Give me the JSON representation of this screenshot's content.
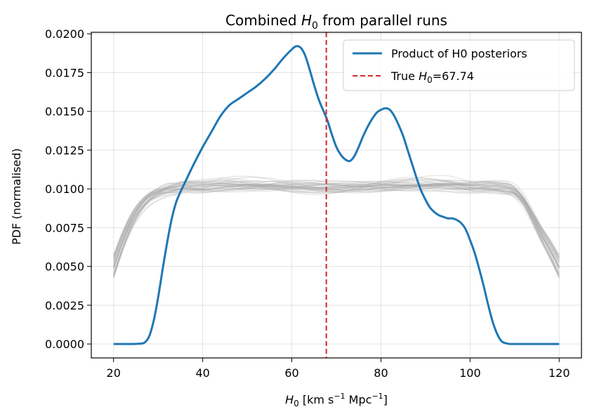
{
  "chart_data": {
    "type": "line",
    "title": "Combined H0 from parallel runs",
    "title_parts": {
      "pre": "Combined ",
      "sym": "H",
      "sub": "0",
      "post": " from parallel runs"
    },
    "xlabel": "H0 [km s^-1 Mpc^-1]",
    "xlabel_parts": {
      "sym": "H",
      "sub": "0",
      "a": " [km s",
      "sup1": "−1",
      "b": " Mpc",
      "sup2": "−1",
      "c": "]"
    },
    "ylabel": "PDF (normalised)",
    "xlim": [
      15,
      125
    ],
    "ylim": [
      -0.0009,
      0.0201
    ],
    "xticks": [
      20,
      40,
      60,
      80,
      100,
      120
    ],
    "xtick_labels": [
      "20",
      "40",
      "60",
      "80",
      "100",
      "120"
    ],
    "yticks": [
      0.0,
      0.0025,
      0.005,
      0.0075,
      0.01,
      0.0125,
      0.015,
      0.0175,
      0.02
    ],
    "ytick_labels": [
      "0.0000",
      "0.0025",
      "0.0050",
      "0.0075",
      "0.0100",
      "0.0125",
      "0.0150",
      "0.0175",
      "0.0200"
    ],
    "grid": true,
    "legend_location": "top-right",
    "series": [
      {
        "name": "Product of H0 posteriors",
        "color": "#1f77b4",
        "style": "solid",
        "x": [
          20,
          22,
          24,
          26,
          27,
          28,
          29,
          30,
          31,
          32,
          33,
          34,
          35,
          36,
          38,
          40,
          42,
          44,
          46,
          48,
          50,
          52,
          54,
          56,
          58,
          60,
          61,
          62,
          63,
          64,
          65,
          66,
          67,
          68,
          69,
          70,
          71,
          72,
          73,
          74,
          75,
          76,
          77,
          78,
          79,
          80,
          81,
          82,
          83,
          84,
          85,
          86,
          87,
          88,
          89,
          90,
          91,
          92,
          93,
          94,
          95,
          96,
          97,
          98,
          99,
          100,
          101,
          102,
          103,
          104,
          105,
          106,
          107,
          108,
          109,
          110,
          111,
          112,
          113,
          114,
          115,
          116,
          118,
          120
        ],
        "y": [
          0.0,
          0.0,
          0.0,
          2e-05,
          0.0001,
          0.0005,
          0.0015,
          0.003,
          0.0048,
          0.0065,
          0.008,
          0.0091,
          0.0098,
          0.0104,
          0.0116,
          0.0127,
          0.0137,
          0.0147,
          0.0154,
          0.0158,
          0.0162,
          0.0166,
          0.0171,
          0.0177,
          0.0184,
          0.019,
          0.0192,
          0.0191,
          0.0186,
          0.0177,
          0.0167,
          0.0158,
          0.0151,
          0.0144,
          0.0135,
          0.0127,
          0.0122,
          0.0119,
          0.0118,
          0.0121,
          0.0127,
          0.0134,
          0.014,
          0.0145,
          0.0149,
          0.0151,
          0.0152,
          0.0151,
          0.0147,
          0.0141,
          0.0134,
          0.0125,
          0.0116,
          0.0107,
          0.0099,
          0.0093,
          0.0088,
          0.0085,
          0.0083,
          0.0082,
          0.0081,
          0.0081,
          0.008,
          0.0078,
          0.0074,
          0.0067,
          0.0059,
          0.0049,
          0.0038,
          0.0026,
          0.0015,
          0.0007,
          0.0002,
          5e-05,
          0.0,
          0.0,
          0.0,
          0.0,
          0.0,
          0.0,
          0.0,
          0.0,
          0.0,
          0.0
        ]
      },
      {
        "name": "True H0=67.74",
        "legend_parts": {
          "pre": "True ",
          "sym": "H",
          "sub": "0",
          "post": "=67.74"
        },
        "color": "#d62728",
        "style": "dashed",
        "type": "vline",
        "x": 67.74
      }
    ],
    "background_runs": {
      "color": "#aaaaaa",
      "count": 36,
      "x": [
        20,
        22,
        24,
        26,
        28,
        30,
        32,
        34,
        36,
        40,
        45,
        50,
        55,
        60,
        65,
        70,
        75,
        80,
        85,
        90,
        95,
        100,
        104,
        108,
        110,
        112,
        114,
        116,
        118,
        120
      ],
      "base_shape": [
        0.005,
        0.0066,
        0.0079,
        0.0088,
        0.0094,
        0.0097,
        0.0099,
        0.01,
        0.0101,
        0.0101,
        0.0102,
        0.0102,
        0.0102,
        0.0102,
        0.0102,
        0.0102,
        0.0102,
        0.0102,
        0.0102,
        0.0102,
        0.0102,
        0.0101,
        0.0101,
        0.01,
        0.0098,
        0.0092,
        0.0082,
        0.0071,
        0.0061,
        0.005
      ]
    }
  }
}
